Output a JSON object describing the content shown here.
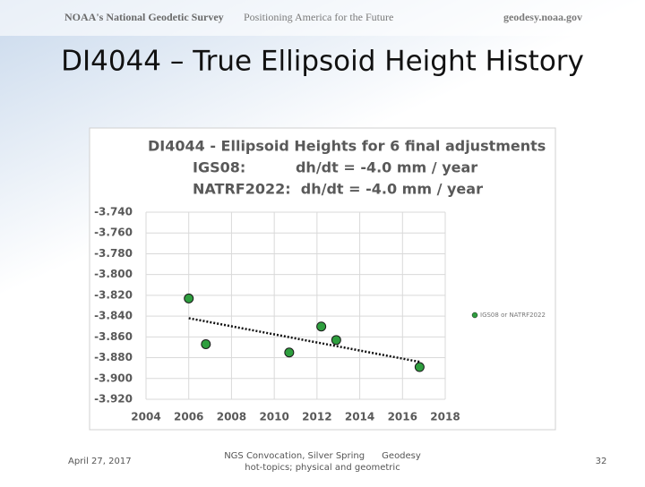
{
  "header": {
    "organization": "NOAA's National Geodetic Survey",
    "tagline": "Positioning America for the Future",
    "website": "geodesy.noaa.gov"
  },
  "slide_title": "DI4044 – True Ellipsoid Height History",
  "chart_data": {
    "type": "scatter",
    "title_lines": [
      "DI4044 - Ellipsoid Heights for 6 final adjustments",
      "IGS08:          dh/dt = -4.0 mm / year",
      "NATRF2022:  dh/dt = -4.0 mm / year"
    ],
    "series": [
      {
        "name": "IGS08 or NATRF2022",
        "color": "#2e9e3e",
        "x": [
          2006.0,
          2006.8,
          2010.7,
          2012.2,
          2012.9,
          2016.8
        ],
        "values": [
          -3.823,
          -3.867,
          -3.875,
          -3.85,
          -3.863,
          -3.889
        ]
      }
    ],
    "trendline": {
      "x": [
        2006.0,
        2016.8
      ],
      "values": [
        -3.842,
        -3.884
      ]
    },
    "xlim": [
      2004,
      2018
    ],
    "xticks": [
      2004,
      2006,
      2008,
      2010,
      2012,
      2014,
      2016,
      2018
    ],
    "ylim": [
      -3.92,
      -3.74
    ],
    "yticks": [
      {
        "value": -3.92,
        "label": "-3.920"
      },
      {
        "value": -3.9,
        "label": "-3.900"
      },
      {
        "value": -3.88,
        "label": "-3.880"
      },
      {
        "value": -3.86,
        "label": "-3.860"
      },
      {
        "value": -3.84,
        "label": "-3.840"
      },
      {
        "value": -3.82,
        "label": "-3.820"
      },
      {
        "value": -3.8,
        "label": "-3.800"
      },
      {
        "value": -3.78,
        "label": "-3.780"
      },
      {
        "value": -3.76,
        "label": "-3.760"
      },
      {
        "value": -3.74,
        "label": "-3.740"
      }
    ],
    "grid": true,
    "legend": "right"
  },
  "footer": {
    "date": "April 27, 2017",
    "event": "NGS Convocation, Silver Spring      Geodesy",
    "event_line2": "hot-topics; physical and geometric",
    "page": "32"
  }
}
